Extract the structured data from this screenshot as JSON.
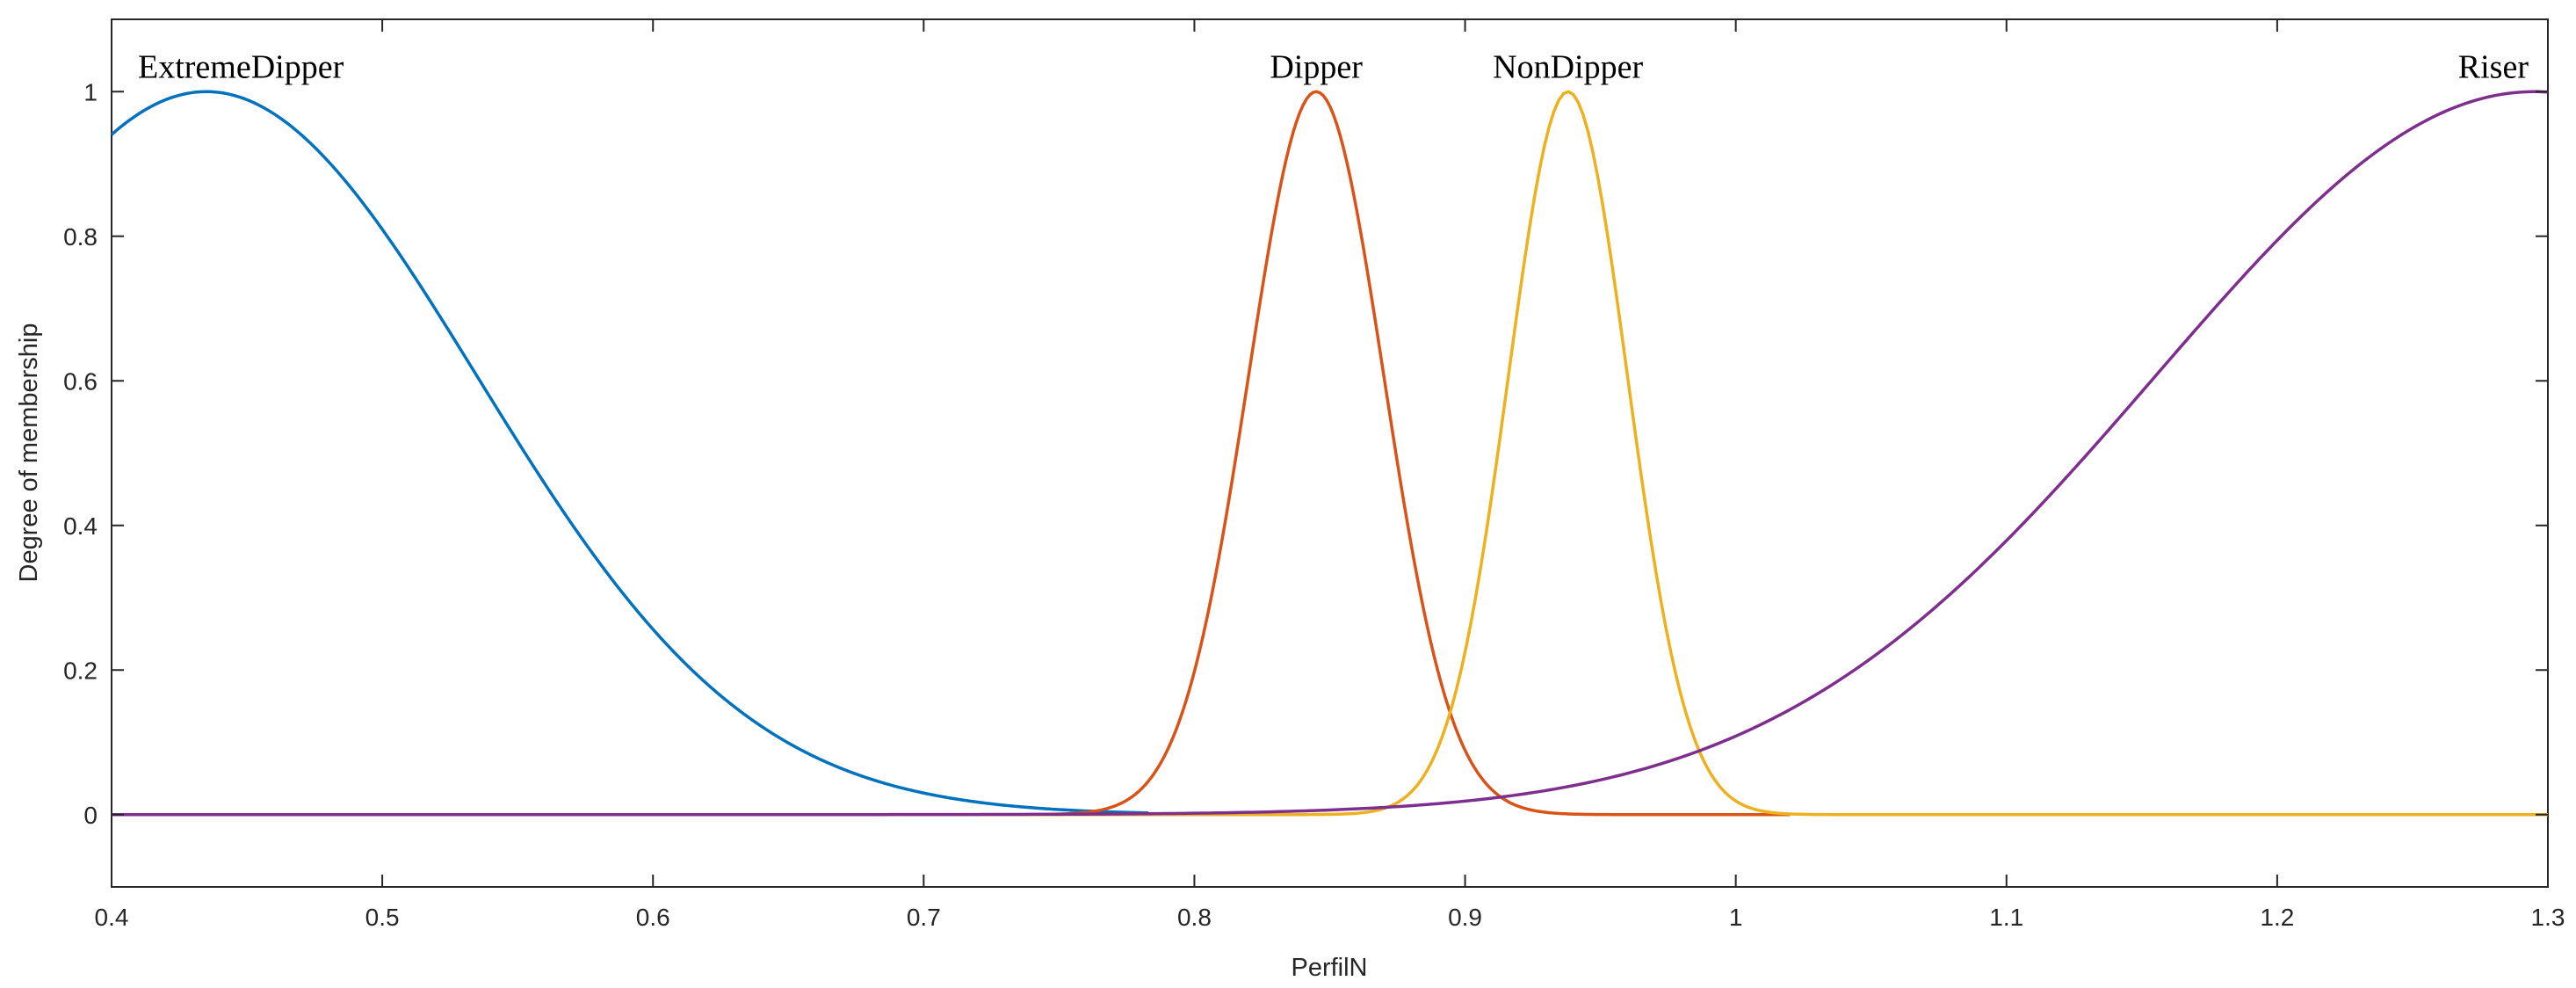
{
  "chart_data": {
    "type": "line",
    "title": "",
    "xlabel": "PerfilN",
    "ylabel": "Degree of membership",
    "xlim": [
      0.4,
      1.3
    ],
    "ylim": [
      -0.1,
      1.1
    ],
    "xticks": [
      0.4,
      0.5,
      0.6,
      0.7,
      0.8,
      0.9,
      1,
      1.1,
      1.2,
      1.3
    ],
    "xtick_labels": [
      "0.4",
      "0.5",
      "0.6",
      "0.7",
      "0.8",
      "0.9",
      "1",
      "1.1",
      "1.2",
      "1.3"
    ],
    "yticks": [
      0,
      0.2,
      0.4,
      0.6,
      0.8,
      1
    ],
    "ytick_labels": [
      "0",
      "0.2",
      "0.4",
      "0.6",
      "0.8",
      "1"
    ],
    "grid": false,
    "legend": "none",
    "series": [
      {
        "name": "ExtremeDipper",
        "color": "#0072BD",
        "shape": "gaussian",
        "center": 0.435,
        "sigma": 0.1,
        "x_range": [
          0.4,
          0.783
        ]
      },
      {
        "name": "Dipper",
        "color": "#D95319",
        "shape": "gaussian",
        "center": 0.845,
        "sigma": 0.025,
        "x_range": [
          0.4,
          1.02
        ]
      },
      {
        "name": "NonDipper",
        "color": "#EDB120",
        "shape": "gaussian",
        "center": 0.938,
        "sigma": 0.022,
        "x_range": [
          0.4,
          1.3
        ]
      },
      {
        "name": "Riser",
        "color": "#7E2F8E",
        "shape": "gaussian",
        "center": 1.295,
        "sigma": 0.14,
        "x_range": [
          0.4,
          1.3
        ]
      }
    ]
  }
}
